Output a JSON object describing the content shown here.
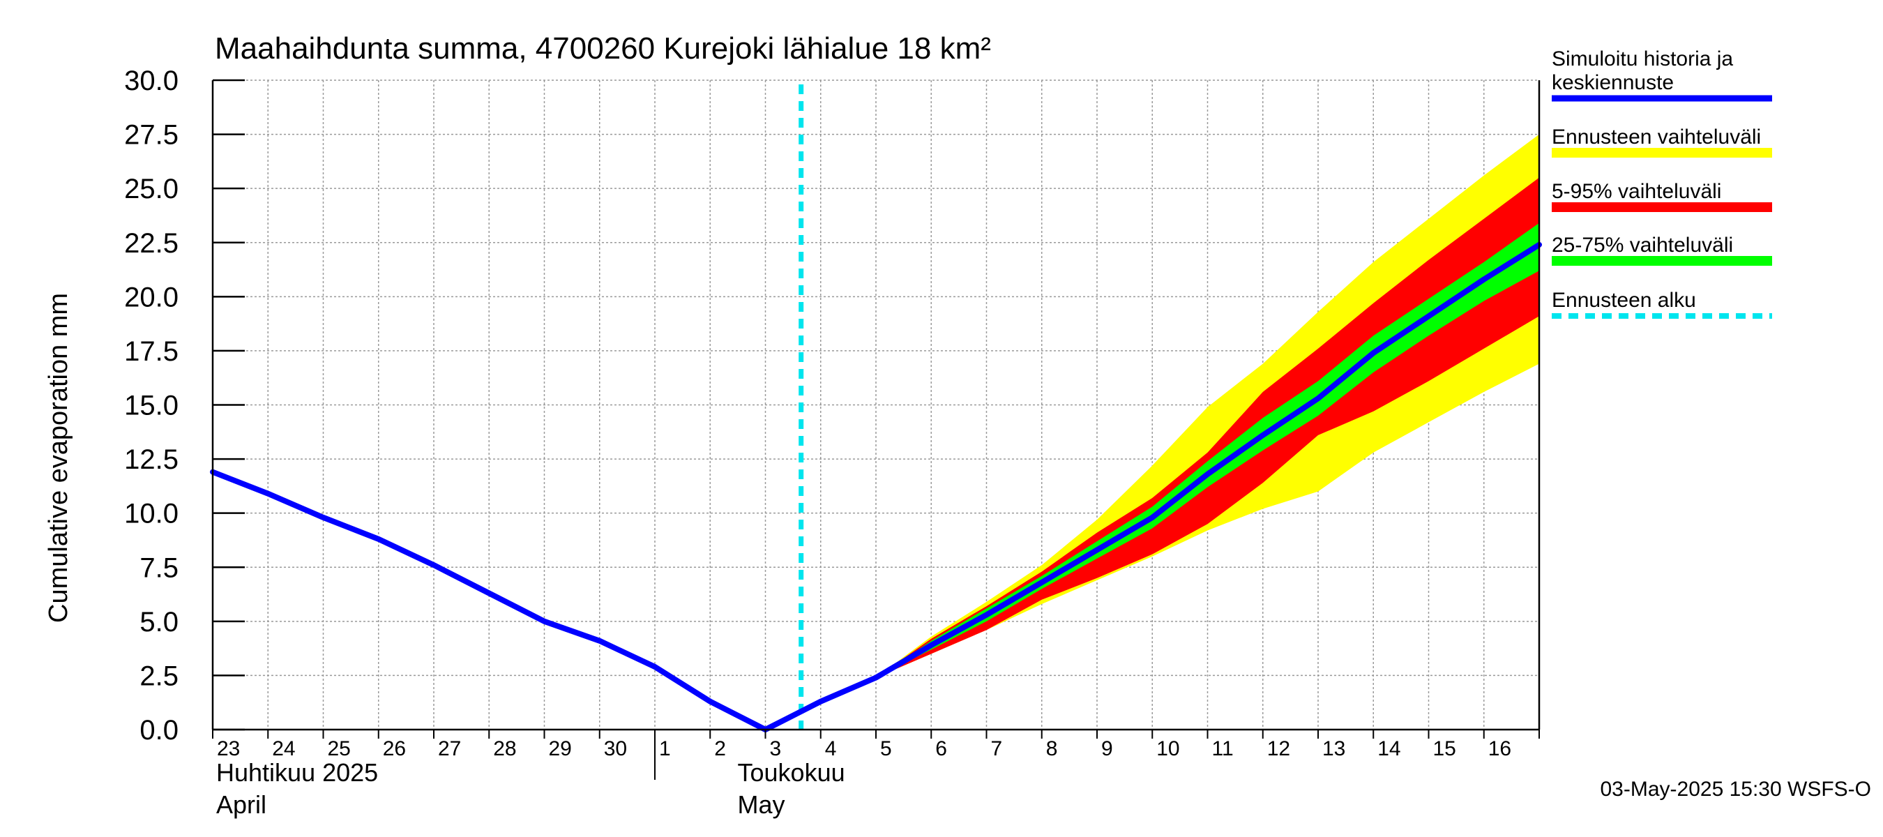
{
  "chart_data": {
    "type": "area",
    "title": "Maahaihdunta summa, 4700260 Kurejoki lähialue 18 km²",
    "ylabel": "Cumulative evaporation   mm",
    "ylim": [
      0,
      30
    ],
    "yticks": [
      "0.0",
      "2.5",
      "5.0",
      "7.5",
      "10.0",
      "12.5",
      "15.0",
      "17.5",
      "20.0",
      "22.5",
      "25.0",
      "27.5",
      "30.0"
    ],
    "xlim": [
      "2025-04-23",
      "2025-05-17"
    ],
    "xticks": [
      "23",
      "24",
      "25",
      "26",
      "27",
      "28",
      "29",
      "30",
      "1",
      "2",
      "3",
      "4",
      "5",
      "6",
      "7",
      "8",
      "9",
      "10",
      "11",
      "12",
      "13",
      "14",
      "15",
      "16"
    ],
    "months": [
      {
        "line1": "Huhtikuu  2025",
        "line2": "April"
      },
      {
        "line1": "Toukokuu",
        "line2": "May"
      }
    ],
    "grid": true,
    "forecast_start": "2025-05-03 15:30",
    "series": [
      {
        "name": "Simuloitu historia ja keskiennuste",
        "color": "#0000ff",
        "points": [
          [
            "2025-04-23",
            11.9
          ],
          [
            "2025-04-24",
            10.9
          ],
          [
            "2025-04-25",
            9.8
          ],
          [
            "2025-04-26",
            8.8
          ],
          [
            "2025-04-27",
            7.6
          ],
          [
            "2025-04-28",
            6.3
          ],
          [
            "2025-04-29",
            5.0
          ],
          [
            "2025-04-30",
            4.1
          ],
          [
            "2025-05-01",
            2.9
          ],
          [
            "2025-05-02",
            1.3
          ],
          [
            "2025-05-03",
            0.0
          ],
          [
            "2025-05-04",
            1.3
          ],
          [
            "2025-05-05",
            2.4
          ],
          [
            "2025-05-06",
            3.9
          ],
          [
            "2025-05-07",
            5.3
          ],
          [
            "2025-05-08",
            6.8
          ],
          [
            "2025-05-09",
            8.3
          ],
          [
            "2025-05-10",
            9.8
          ],
          [
            "2025-05-11",
            11.8
          ],
          [
            "2025-05-12",
            13.6
          ],
          [
            "2025-05-13",
            15.3
          ],
          [
            "2025-05-14",
            17.4
          ],
          [
            "2025-05-15",
            19.1
          ],
          [
            "2025-05-16",
            20.8
          ],
          [
            "2025-05-17",
            22.4
          ]
        ]
      }
    ],
    "bands": [
      {
        "name": "Ennusteen vaihteluväli",
        "color": "#ffff00",
        "x": [
          "2025-05-05",
          "2025-05-06",
          "2025-05-07",
          "2025-05-08",
          "2025-05-09",
          "2025-05-10",
          "2025-05-11",
          "2025-05-12",
          "2025-05-13",
          "2025-05-14",
          "2025-05-15",
          "2025-05-16",
          "2025-05-17"
        ],
        "upper": [
          2.4,
          4.3,
          5.9,
          7.6,
          9.7,
          12.2,
          14.9,
          16.9,
          19.3,
          21.6,
          23.6,
          25.6,
          27.5
        ],
        "lower": [
          2.4,
          3.5,
          4.6,
          5.8,
          6.9,
          8.0,
          9.2,
          10.2,
          11.0,
          12.8,
          14.2,
          15.6,
          16.9
        ]
      },
      {
        "name": "5-95% vaihteluväli",
        "color": "#ff0000",
        "x": [
          "2025-05-05",
          "2025-05-06",
          "2025-05-07",
          "2025-05-08",
          "2025-05-09",
          "2025-05-10",
          "2025-05-11",
          "2025-05-12",
          "2025-05-13",
          "2025-05-14",
          "2025-05-15",
          "2025-05-16",
          "2025-05-17"
        ],
        "upper": [
          2.4,
          4.2,
          5.7,
          7.3,
          9.1,
          10.7,
          12.8,
          15.6,
          17.6,
          19.7,
          21.7,
          23.6,
          25.5
        ],
        "lower": [
          2.4,
          3.5,
          4.6,
          6.0,
          7.0,
          8.1,
          9.5,
          11.4,
          13.6,
          14.7,
          16.1,
          17.6,
          19.1
        ]
      },
      {
        "name": "25-75% vaihteluväli",
        "color": "#00ff00",
        "x": [
          "2025-05-05",
          "2025-05-06",
          "2025-05-07",
          "2025-05-08",
          "2025-05-09",
          "2025-05-10",
          "2025-05-11",
          "2025-05-12",
          "2025-05-13",
          "2025-05-14",
          "2025-05-15",
          "2025-05-16",
          "2025-05-17"
        ],
        "upper": [
          2.4,
          4.1,
          5.6,
          7.1,
          8.7,
          10.3,
          12.4,
          14.4,
          16.1,
          18.2,
          19.9,
          21.6,
          23.4
        ],
        "lower": [
          2.4,
          3.7,
          5.0,
          6.5,
          7.9,
          9.3,
          11.2,
          12.9,
          14.5,
          16.5,
          18.2,
          19.8,
          21.2
        ]
      }
    ],
    "forecast_marker": {
      "name": "Ennusteen alku",
      "color": "#00e5ee"
    },
    "legend_position": "right",
    "footer": "03-May-2025 15:30 WSFS-O"
  }
}
